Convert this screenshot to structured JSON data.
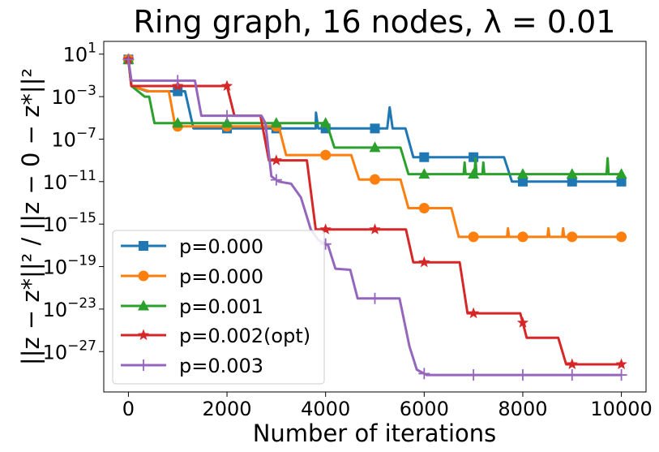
{
  "chart_data": {
    "type": "line",
    "title": "Ring graph, 16 nodes, λ = 0.01",
    "xlabel": "Number of iterations",
    "ylabel": "||z − z*||² / ||z − 0 − z*||²",
    "yscale": "log10",
    "xlim": [
      -500,
      10500
    ],
    "ylim_log10": [
      -30.8,
      2.2
    ],
    "x_ticks": [
      0,
      2000,
      4000,
      6000,
      8000,
      10000
    ],
    "x_tick_labels": [
      "0",
      "2000",
      "4000",
      "6000",
      "8000",
      "10000"
    ],
    "y_ticks_log10": [
      1,
      -3,
      -7,
      -11,
      -15,
      -19,
      -23,
      -27
    ],
    "y_tick_labels": [
      {
        "base": "10",
        "exp": "1"
      },
      {
        "base": "10",
        "exp": "−3"
      },
      {
        "base": "10",
        "exp": "−7"
      },
      {
        "base": "10",
        "exp": "−11"
      },
      {
        "base": "10",
        "exp": "−15"
      },
      {
        "base": "10",
        "exp": "−19"
      },
      {
        "base": "10",
        "exp": "−23"
      },
      {
        "base": "10",
        "exp": "−27"
      }
    ],
    "legend_position": "lower-left",
    "series": [
      {
        "name": "p=0.000",
        "color": "#1f77b4",
        "marker": "square",
        "markers_x": [
          0,
          1000,
          2000,
          3000,
          4000,
          5000,
          6000,
          7000,
          8000,
          9000,
          10000
        ],
        "log10_values": [
          [
            0,
            0.5
          ],
          [
            60,
            -2
          ],
          [
            380,
            -2.5
          ],
          [
            1150,
            -2.5
          ],
          [
            1320,
            -6
          ],
          [
            3650,
            -6
          ],
          [
            3800,
            -6
          ],
          [
            3805,
            -4.5
          ],
          [
            3850,
            -6
          ],
          [
            5250,
            -6
          ],
          [
            5300,
            -4
          ],
          [
            5360,
            -6
          ],
          [
            5620,
            -6
          ],
          [
            5780,
            -8.7
          ],
          [
            7620,
            -8.7
          ],
          [
            7780,
            -11
          ],
          [
            10000,
            -11
          ]
        ]
      },
      {
        "name": "p=0.000",
        "color": "#ff7f0e",
        "marker": "circle",
        "markers_x": [
          0,
          1000,
          2000,
          3000,
          4000,
          5000,
          6000,
          7000,
          8000,
          9000,
          10000
        ],
        "log10_values": [
          [
            0,
            0.5
          ],
          [
            60,
            -2
          ],
          [
            420,
            -2.5
          ],
          [
            820,
            -2.5
          ],
          [
            950,
            -5.8
          ],
          [
            3050,
            -5.8
          ],
          [
            3200,
            -8.5
          ],
          [
            4520,
            -8.5
          ],
          [
            4680,
            -10.8
          ],
          [
            5520,
            -10.8
          ],
          [
            5680,
            -13.5
          ],
          [
            6550,
            -13.5
          ],
          [
            6700,
            -16.2
          ],
          [
            7680,
            -16.2
          ],
          [
            7700,
            -15.4
          ],
          [
            7720,
            -16.2
          ],
          [
            8500,
            -16.2
          ],
          [
            8520,
            -15.4
          ],
          [
            8540,
            -16.2
          ],
          [
            8800,
            -16.2
          ],
          [
            8820,
            -15.4
          ],
          [
            8840,
            -16.2
          ],
          [
            10000,
            -16.2
          ]
        ]
      },
      {
        "name": "p=0.001",
        "color": "#2ca02c",
        "marker": "triangle",
        "markers_x": [
          0,
          1000,
          2000,
          3000,
          4000,
          5000,
          6000,
          7000,
          8000,
          9000,
          10000
        ],
        "log10_values": [
          [
            0,
            0.5
          ],
          [
            60,
            -2
          ],
          [
            330,
            -3
          ],
          [
            420,
            -3
          ],
          [
            530,
            -5.5
          ],
          [
            4020,
            -5.5
          ],
          [
            4180,
            -7.8
          ],
          [
            5520,
            -7.8
          ],
          [
            5680,
            -10.3
          ],
          [
            6800,
            -10.3
          ],
          [
            6820,
            -9.2
          ],
          [
            6840,
            -10.3
          ],
          [
            7020,
            -10.3
          ],
          [
            7040,
            -8.8
          ],
          [
            7060,
            -10.3
          ],
          [
            7180,
            -10.3
          ],
          [
            7200,
            -9.2
          ],
          [
            7220,
            -10.3
          ],
          [
            9700,
            -10.3
          ],
          [
            9720,
            -8.8
          ],
          [
            9740,
            -10.3
          ],
          [
            10000,
            -10.3
          ]
        ]
      },
      {
        "name": "p=0.002(opt)",
        "color": "#d62728",
        "marker": "star",
        "markers_x": [
          0,
          1000,
          2000,
          3000,
          4000,
          5000,
          6000,
          7000,
          8000,
          9000,
          10000
        ],
        "log10_values": [
          [
            0,
            0.5
          ],
          [
            60,
            -2
          ],
          [
            300,
            -2
          ],
          [
            1000,
            -2
          ],
          [
            2000,
            -2
          ],
          [
            2150,
            -4.8
          ],
          [
            2680,
            -4.8
          ],
          [
            2850,
            -9
          ],
          [
            3620,
            -9
          ],
          [
            3800,
            -15.5
          ],
          [
            5630,
            -15.5
          ],
          [
            5780,
            -18.6
          ],
          [
            6720,
            -18.6
          ],
          [
            6880,
            -23.4
          ],
          [
            7950,
            -23.4
          ],
          [
            8080,
            -25.7
          ],
          [
            8720,
            -25.7
          ],
          [
            8880,
            -28.2
          ],
          [
            10000,
            -28.2
          ]
        ]
      },
      {
        "name": "p=0.003",
        "color": "#9467bd",
        "marker": "plus",
        "markers_x": [
          0,
          1000,
          2000,
          3000,
          4000,
          5000,
          6000,
          7000,
          8000,
          9000,
          10000
        ],
        "log10_values": [
          [
            0,
            0.5
          ],
          [
            60,
            -1.5
          ],
          [
            250,
            -1.5
          ],
          [
            950,
            -1.5
          ],
          [
            1350,
            -1.5
          ],
          [
            1480,
            -4.8
          ],
          [
            1950,
            -4.8
          ],
          [
            2150,
            -4.8
          ],
          [
            2700,
            -4.8
          ],
          [
            2780,
            -5.5
          ],
          [
            2900,
            -10.5
          ],
          [
            3050,
            -11
          ],
          [
            3300,
            -11.2
          ],
          [
            3500,
            -12.5
          ],
          [
            3700,
            -15.5
          ],
          [
            3850,
            -16.5
          ],
          [
            4050,
            -17
          ],
          [
            4200,
            -19.2
          ],
          [
            4500,
            -19.3
          ],
          [
            4650,
            -22
          ],
          [
            5500,
            -22
          ],
          [
            5700,
            -26.5
          ],
          [
            5850,
            -28.7
          ],
          [
            6050,
            -29.2
          ],
          [
            10000,
            -29.2
          ]
        ]
      }
    ]
  }
}
